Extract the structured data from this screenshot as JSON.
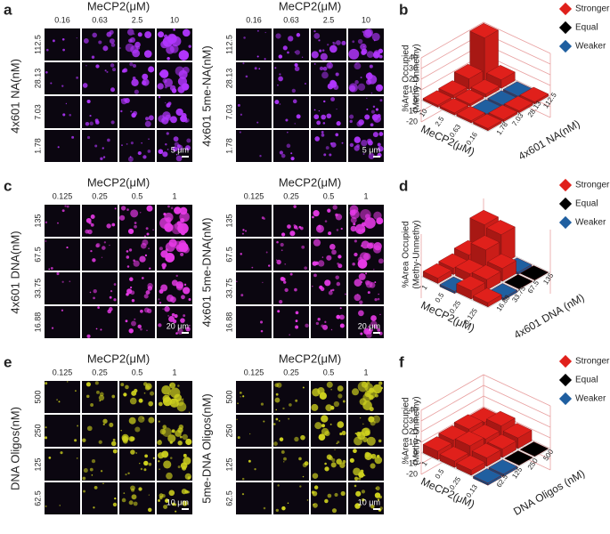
{
  "panels": [
    {
      "label": "a",
      "color": "#b236ff",
      "grids": [
        {
          "title": "MeCP2(μM)",
          "columns": [
            "0.16",
            "0.63",
            "2.5",
            "10"
          ],
          "y_label": "4x601 NA(nM)",
          "rows": [
            "112.5",
            "28.13",
            "7.03",
            "1.78"
          ],
          "scale_bar": "5 μm"
        },
        {
          "title": "MeCP2(μM)",
          "columns": [
            "0.16",
            "0.63",
            "2.5",
            "10"
          ],
          "y_label": "4x601 5me-NA(nM)",
          "rows": [
            "112.5",
            "28.13",
            "7.03",
            "1.78"
          ],
          "scale_bar": "5 μm"
        }
      ]
    },
    {
      "label": "c",
      "color": "#e83ae8",
      "grids": [
        {
          "title": "MeCP2(μM)",
          "columns": [
            "0.125",
            "0.25",
            "0.5",
            "1"
          ],
          "y_label": "4x601 DNA(nM)",
          "rows": [
            "135",
            "67.5",
            "33.75",
            "16.88"
          ],
          "scale_bar": "20 μm"
        },
        {
          "title": "MeCP2(μM)",
          "columns": [
            "0.125",
            "0.25",
            "0.5",
            "1"
          ],
          "y_label": "4x601 5me-DNA(nM)",
          "rows": [
            "135",
            "67.5",
            "33.75",
            "16.88"
          ],
          "scale_bar": "20 μm"
        }
      ]
    },
    {
      "label": "e",
      "color": "#cfd21e",
      "grids": [
        {
          "title": "MeCP2(μM)",
          "columns": [
            "0.125",
            "0.25",
            "0.5",
            "1"
          ],
          "y_label": "DNA Oligos(nM)",
          "rows": [
            "500",
            "250",
            "125",
            "62.5"
          ],
          "scale_bar": "10 μm"
        },
        {
          "title": "MeCP2(μM)",
          "columns": [
            "0.125",
            "0.25",
            "0.5",
            "1"
          ],
          "y_label": "5me-DNA Oligos(nM)",
          "rows": [
            "500",
            "250",
            "125",
            "62.5"
          ],
          "scale_bar": "10 μm"
        }
      ]
    }
  ],
  "charts": [
    {
      "label": "b",
      "type": "bar3d",
      "z_label": [
        "%Area Occupied",
        "(Methy-Unmethy)"
      ],
      "x_label": "MeCP2(μM)",
      "y_label": "4x601 NA(nM)",
      "x_categories": [
        "10",
        "2.5",
        "0.63",
        "0.16"
      ],
      "y_categories": [
        "1.78",
        "7.03",
        "28.13",
        "112.5"
      ],
      "zlim": [
        -20,
        40
      ],
      "zticks": [
        -20,
        -10,
        0,
        10,
        20,
        30,
        40
      ],
      "values": [
        [
          2,
          2,
          2,
          2
        ],
        [
          3,
          2,
          -2,
          2
        ],
        [
          10,
          3,
          -2,
          2
        ],
        [
          40,
          8,
          -2,
          2
        ]
      ],
      "legend": [
        {
          "name": "Stronger",
          "color": "#e0201b"
        },
        {
          "name": "Equal",
          "color": "#000000"
        },
        {
          "name": "Weaker",
          "color": "#1f5fa0"
        }
      ]
    },
    {
      "label": "d",
      "type": "bar3d",
      "z_label": [
        "%Area Occupied",
        "(Methy-Unmethy)"
      ],
      "x_label": "MeCP2(μM)",
      "y_label": "4x601 DNA (nM)",
      "x_categories": [
        "1",
        "0.5",
        "0.25",
        "0.125"
      ],
      "y_categories": [
        "16.88",
        "33.75",
        "67.5",
        "135"
      ],
      "zlim": [
        -20,
        40
      ],
      "values": [
        [
          5,
          -2,
          8,
          4
        ],
        [
          6,
          8,
          10,
          -2
        ],
        [
          10,
          22,
          12,
          0
        ],
        [
          30,
          28,
          -2,
          0
        ]
      ],
      "legend": [
        {
          "name": "Stronger",
          "color": "#e0201b"
        },
        {
          "name": "Equal",
          "color": "#000000"
        },
        {
          "name": "Weaker",
          "color": "#1f5fa0"
        }
      ]
    },
    {
      "label": "f",
      "type": "bar3d",
      "z_label": [
        "%Area Occupied",
        "(Methy-Unmethy)"
      ],
      "x_label": "MeCP2(μM)",
      "y_label": "DNA Oligos (nM)",
      "x_categories": [
        "1",
        "0.5",
        "0.25",
        "0.13"
      ],
      "y_categories": [
        "62.5",
        "125",
        "250",
        "500"
      ],
      "zlim": [
        -20,
        40
      ],
      "zticks": [
        -20,
        -10,
        0,
        10,
        20,
        30,
        40
      ],
      "values": [
        [
          8,
          6,
          5,
          -2
        ],
        [
          10,
          12,
          8,
          -2
        ],
        [
          12,
          10,
          8,
          0
        ],
        [
          10,
          14,
          10,
          0
        ]
      ],
      "legend": [
        {
          "name": "Stronger",
          "color": "#e0201b"
        },
        {
          "name": "Equal",
          "color": "#000000"
        },
        {
          "name": "Weaker",
          "color": "#1f5fa0"
        }
      ]
    }
  ]
}
